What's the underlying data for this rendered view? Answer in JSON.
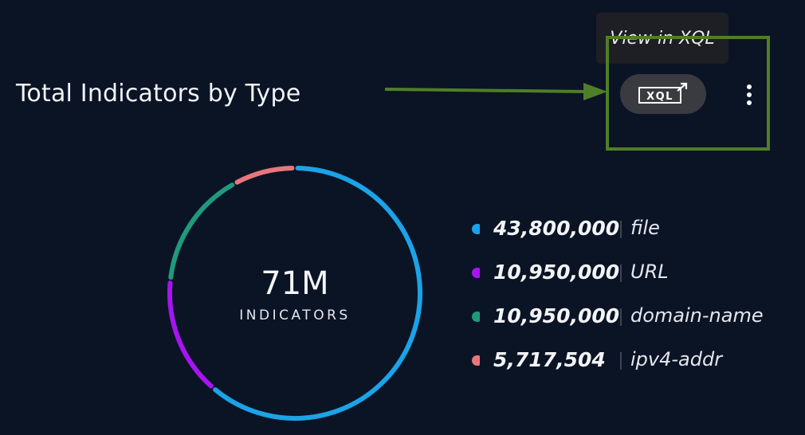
{
  "widget": {
    "title": "Total Indicators by Type"
  },
  "toolbar": {
    "tooltip": "View in XQL",
    "xql_label": "XQL",
    "xql_icon": "external-link-icon",
    "menu_icon": "kebab-menu-icon"
  },
  "summary": {
    "total": "71M",
    "label": "INDICATORS"
  },
  "legend": [
    {
      "value": "43,800,000",
      "label": "file",
      "color": "#1ba3e8"
    },
    {
      "value": "10,950,000",
      "label": "URL",
      "color": "#a415f0"
    },
    {
      "value": "10,950,000",
      "label": "domain-name",
      "color": "#1f9a7c"
    },
    {
      "value": "5,717,504",
      "label": "ipv4-addr",
      "color": "#e8777b"
    }
  ],
  "chart_data": {
    "type": "pie",
    "categories": [
      "file",
      "URL",
      "domain-name",
      "ipv4-addr"
    ],
    "values": [
      43800000,
      10950000,
      10950000,
      5717504
    ],
    "colors": [
      "#1ba3e8",
      "#a415f0",
      "#1f9a7c",
      "#e8777b"
    ]
  },
  "annotation": {
    "color": "#4f7e28"
  }
}
